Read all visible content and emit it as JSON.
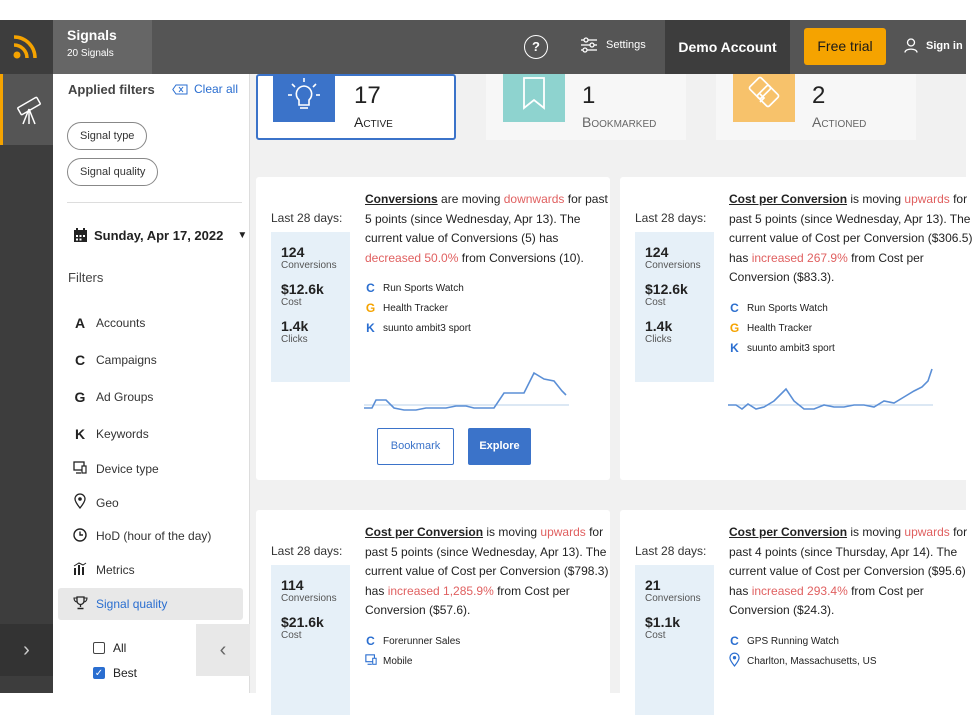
{
  "header": {
    "app_title": "Signals",
    "app_subtitle": "20 Signals",
    "help_label": "?",
    "settings_label": "Settings",
    "account_label": "Demo Account",
    "trial_label": "Free trial",
    "signin_label": "Sign in"
  },
  "colors": {
    "accent": "#f5a300",
    "primary": "#3b73c9",
    "negative": "#e06060"
  },
  "sidebar": {
    "applied_title": "Applied filters",
    "clear_all": "Clear all",
    "chips": [
      "Signal type",
      "Signal quality"
    ],
    "date": "Sunday, Apr 17, 2022",
    "filters_title": "Filters",
    "items": [
      {
        "icon": "A",
        "label": "Accounts"
      },
      {
        "icon": "C",
        "label": "Campaigns"
      },
      {
        "icon": "G",
        "label": "Ad Groups"
      },
      {
        "icon": "K",
        "label": "Keywords"
      },
      {
        "icon": "device-icon",
        "label": "Device type"
      },
      {
        "icon": "geo-pin-icon",
        "label": "Geo"
      },
      {
        "icon": "clock-icon",
        "label": "HoD (hour of the day)"
      },
      {
        "icon": "metrics-icon",
        "label": "Metrics"
      },
      {
        "icon": "trophy-icon",
        "label": "Signal quality"
      }
    ],
    "options": [
      {
        "label": "All",
        "checked": false
      },
      {
        "label": "Best",
        "checked": true
      }
    ]
  },
  "stats": [
    {
      "count": "17",
      "label": "Active",
      "icon": "lightbulb-icon",
      "color": "#3b73c9"
    },
    {
      "count": "1",
      "label": "Bookmarked",
      "icon": "bookmark-icon",
      "color": "#8ed3cf"
    },
    {
      "count": "2",
      "label": "Actioned",
      "icon": "arrows-icon",
      "color": "#f7c26b"
    }
  ],
  "cards": [
    {
      "period": "Last 28 days:",
      "metrics": [
        {
          "value": "124",
          "label": "Conversions"
        },
        {
          "value": "$12.6k",
          "label": "Cost"
        },
        {
          "value": "1.4k",
          "label": "Clicks"
        }
      ],
      "metric_name": "Conversions",
      "moving": " are moving ",
      "direction": "downwards",
      "since": " for past 5 points (since Wednesday, Apr 13). The current value of Conversions (5) has ",
      "change": "decreased 50.0%",
      "from": " from Conversions (10).",
      "entities": [
        {
          "icon": "C",
          "label": "Run Sports Watch"
        },
        {
          "icon": "G",
          "label": "Health Tracker"
        },
        {
          "icon": "K",
          "label": "suunto ambit3 sport"
        }
      ],
      "bookmark_label": "Bookmark",
      "explore_label": "Explore"
    },
    {
      "period": "Last 28 days:",
      "metrics": [
        {
          "value": "124",
          "label": "Conversions"
        },
        {
          "value": "$12.6k",
          "label": "Cost"
        },
        {
          "value": "1.4k",
          "label": "Clicks"
        }
      ],
      "metric_name": "Cost per Conversion",
      "moving": " is moving ",
      "direction": "upwards",
      "since": " for past 5 points (since Wednesday, Apr 13). The current value of Cost per Conversion ($306.5) has ",
      "change": "increased 267.9%",
      "from": " from Cost per Conversion ($83.3).",
      "entities": [
        {
          "icon": "C",
          "label": "Run Sports Watch"
        },
        {
          "icon": "G",
          "label": "Health Tracker"
        },
        {
          "icon": "K",
          "label": "suunto ambit3 sport"
        }
      ]
    },
    {
      "period": "Last 28 days:",
      "metrics": [
        {
          "value": "114",
          "label": "Conversions"
        },
        {
          "value": "$21.6k",
          "label": "Cost"
        }
      ],
      "metric_name": "Cost per Conversion",
      "moving": " is moving ",
      "direction": "upwards",
      "since": " for past 5 points (since Wednesday, Apr 13). The current value of Cost per Conversion ($798.3) has ",
      "change": "increased 1,285.9%",
      "from": " from Cost per Conversion ($57.6).",
      "entities": [
        {
          "icon": "C",
          "label": "Forerunner Sales"
        },
        {
          "icon": "device-icon",
          "label": "Mobile"
        }
      ]
    },
    {
      "period": "Last 28 days:",
      "metrics": [
        {
          "value": "21",
          "label": "Conversions"
        },
        {
          "value": "$1.1k",
          "label": "Cost"
        }
      ],
      "metric_name": "Cost per Conversion",
      "moving": " is moving ",
      "direction": "upwards",
      "since": " for past 4 points (since Thursday, Apr 14). The current value of Cost per Conversion ($95.6) has ",
      "change": "increased 293.4%",
      "from": " from Cost per Conversion ($24.3).",
      "entities": [
        {
          "icon": "C",
          "label": "GPS Running Watch"
        },
        {
          "icon": "geo-pin-icon",
          "label": "Charlton, Massachusetts, US"
        }
      ]
    }
  ]
}
